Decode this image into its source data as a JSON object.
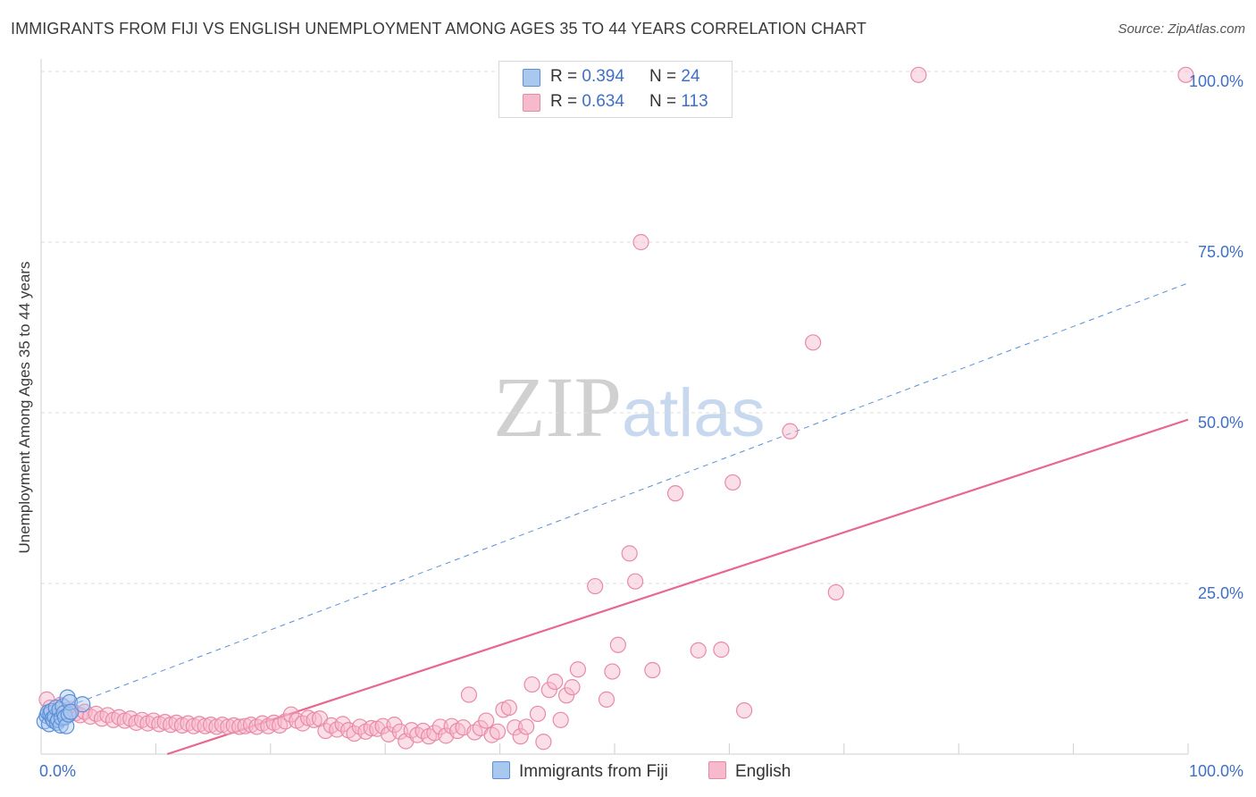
{
  "header": {
    "title": "IMMIGRANTS FROM FIJI VS ENGLISH UNEMPLOYMENT AMONG AGES 35 TO 44 YEARS CORRELATION CHART",
    "source": "Source: ZipAtlas.com"
  },
  "watermark": {
    "zip": "ZIP",
    "atlas": "atlas"
  },
  "legend": {
    "fiji": {
      "r_label": "R = ",
      "r_value": "0.394",
      "n_label": "N = ",
      "n_value": "24"
    },
    "english": {
      "r_label": "R = ",
      "r_value": "0.634",
      "n_label": "N = ",
      "n_value": "113"
    }
  },
  "colors": {
    "fiji_fill": "#a9c8f0",
    "fiji_stroke": "#5b8fd8",
    "fiji_line": "#5b8fd8",
    "english_fill": "#f7b9cc",
    "english_stroke": "#e88aa6",
    "english_line": "#e8678f",
    "axis_text": "#3f6fc6",
    "grid": "#dddddd"
  },
  "chart_data": {
    "type": "scatter",
    "title": "IMMIGRANTS FROM FIJI VS ENGLISH UNEMPLOYMENT AMONG AGES 35 TO 44 YEARS CORRELATION CHART",
    "xlabel": "",
    "ylabel": "Unemployment Among Ages 35 to 44 years",
    "xlim": [
      0,
      100
    ],
    "ylim": [
      0,
      100
    ],
    "x_tick_labels": [
      {
        "value": 0,
        "label": "0.0%"
      },
      {
        "value": 100,
        "label": "100.0%"
      }
    ],
    "y_tick_labels": [
      {
        "value": 25,
        "label": "25.0%"
      },
      {
        "value": 50,
        "label": "50.0%"
      },
      {
        "value": 75,
        "label": "75.0%"
      },
      {
        "value": 100,
        "label": "100.0%"
      }
    ],
    "series": [
      {
        "name": "Immigrants from Fiji",
        "R": 0.394,
        "N": 24,
        "trendline": {
          "style": "dashed",
          "x": [
            0,
            100
          ],
          "y": [
            5.5,
            69.0
          ]
        },
        "points": [
          [
            0.3,
            4.8
          ],
          [
            0.5,
            5.6
          ],
          [
            0.6,
            6.1
          ],
          [
            0.7,
            4.4
          ],
          [
            0.8,
            5.9
          ],
          [
            0.9,
            6.3
          ],
          [
            1.0,
            5.2
          ],
          [
            1.1,
            4.9
          ],
          [
            1.2,
            5.5
          ],
          [
            1.3,
            6.8
          ],
          [
            1.4,
            4.6
          ],
          [
            1.5,
            5.0
          ],
          [
            1.6,
            6.5
          ],
          [
            1.7,
            4.2
          ],
          [
            1.8,
            5.3
          ],
          [
            1.9,
            7.0
          ],
          [
            2.0,
            6.0
          ],
          [
            2.1,
            5.4
          ],
          [
            2.2,
            4.1
          ],
          [
            2.3,
            8.3
          ],
          [
            2.4,
            5.8
          ],
          [
            2.5,
            7.6
          ],
          [
            2.6,
            6.2
          ],
          [
            3.6,
            7.3
          ]
        ]
      },
      {
        "name": "English",
        "R": 0.634,
        "N": 113,
        "trendline": {
          "style": "solid",
          "x": [
            11,
            100
          ],
          "y": [
            0,
            49.0
          ]
        },
        "points": [
          [
            0.5,
            8.0
          ],
          [
            0.8,
            6.8
          ],
          [
            1.1,
            6.0
          ],
          [
            1.4,
            5.5
          ],
          [
            1.7,
            7.2
          ],
          [
            2.0,
            6.4
          ],
          [
            2.3,
            5.8
          ],
          [
            2.6,
            6.6
          ],
          [
            3.0,
            6.0
          ],
          [
            3.4,
            5.7
          ],
          [
            3.8,
            6.2
          ],
          [
            4.3,
            5.5
          ],
          [
            4.8,
            5.9
          ],
          [
            5.3,
            5.2
          ],
          [
            5.8,
            5.7
          ],
          [
            6.3,
            5.0
          ],
          [
            6.8,
            5.4
          ],
          [
            7.3,
            4.9
          ],
          [
            7.8,
            5.2
          ],
          [
            8.3,
            4.6
          ],
          [
            8.8,
            5.0
          ],
          [
            9.3,
            4.5
          ],
          [
            9.8,
            4.9
          ],
          [
            10.3,
            4.4
          ],
          [
            10.8,
            4.7
          ],
          [
            11.3,
            4.3
          ],
          [
            11.8,
            4.6
          ],
          [
            12.3,
            4.2
          ],
          [
            12.8,
            4.5
          ],
          [
            13.3,
            4.1
          ],
          [
            13.8,
            4.4
          ],
          [
            14.3,
            4.1
          ],
          [
            14.8,
            4.3
          ],
          [
            15.3,
            4.0
          ],
          [
            15.8,
            4.3
          ],
          [
            16.3,
            4.0
          ],
          [
            16.8,
            4.2
          ],
          [
            17.3,
            4.0
          ],
          [
            17.8,
            4.1
          ],
          [
            18.3,
            4.3
          ],
          [
            18.8,
            4.0
          ],
          [
            19.3,
            4.5
          ],
          [
            19.8,
            4.1
          ],
          [
            20.3,
            4.6
          ],
          [
            20.8,
            4.2
          ],
          [
            21.3,
            4.8
          ],
          [
            21.8,
            5.8
          ],
          [
            22.3,
            4.9
          ],
          [
            22.8,
            4.5
          ],
          [
            23.3,
            5.3
          ],
          [
            23.8,
            5.0
          ],
          [
            24.3,
            5.2
          ],
          [
            24.8,
            3.4
          ],
          [
            25.3,
            4.2
          ],
          [
            25.8,
            3.6
          ],
          [
            26.3,
            4.4
          ],
          [
            26.8,
            3.5
          ],
          [
            27.3,
            3.0
          ],
          [
            27.8,
            4.0
          ],
          [
            28.3,
            3.3
          ],
          [
            28.8,
            3.8
          ],
          [
            29.3,
            3.7
          ],
          [
            29.8,
            4.1
          ],
          [
            30.3,
            2.9
          ],
          [
            30.8,
            4.3
          ],
          [
            31.3,
            3.3
          ],
          [
            31.8,
            1.9
          ],
          [
            32.3,
            3.5
          ],
          [
            32.8,
            2.8
          ],
          [
            33.3,
            3.4
          ],
          [
            33.8,
            2.6
          ],
          [
            34.3,
            3.1
          ],
          [
            34.8,
            4.0
          ],
          [
            35.3,
            2.7
          ],
          [
            35.8,
            4.1
          ],
          [
            36.3,
            3.4
          ],
          [
            36.8,
            3.9
          ],
          [
            37.3,
            8.7
          ],
          [
            37.8,
            3.2
          ],
          [
            38.3,
            3.8
          ],
          [
            38.8,
            4.9
          ],
          [
            39.3,
            2.8
          ],
          [
            39.8,
            3.3
          ],
          [
            40.3,
            6.5
          ],
          [
            40.8,
            6.8
          ],
          [
            41.3,
            3.9
          ],
          [
            41.8,
            2.6
          ],
          [
            42.3,
            4.0
          ],
          [
            42.8,
            10.2
          ],
          [
            43.3,
            5.9
          ],
          [
            43.8,
            1.8
          ],
          [
            44.3,
            9.4
          ],
          [
            44.8,
            10.6
          ],
          [
            45.3,
            5.0
          ],
          [
            45.8,
            8.6
          ],
          [
            46.3,
            9.8
          ],
          [
            46.8,
            12.4
          ],
          [
            48.3,
            24.6
          ],
          [
            49.8,
            12.1
          ],
          [
            50.3,
            16.0
          ],
          [
            51.3,
            29.4
          ],
          [
            51.8,
            25.3
          ],
          [
            53.3,
            12.3
          ],
          [
            55.3,
            38.2
          ],
          [
            57.3,
            15.2
          ],
          [
            59.3,
            15.3
          ],
          [
            60.3,
            39.8
          ],
          [
            61.3,
            6.4
          ],
          [
            65.3,
            47.3
          ],
          [
            67.3,
            60.3
          ],
          [
            69.3,
            23.7
          ],
          [
            52.3,
            75.0
          ],
          [
            49.3,
            8.0
          ],
          [
            76.5,
            99.5
          ],
          [
            99.8,
            99.5
          ]
        ]
      }
    ]
  }
}
